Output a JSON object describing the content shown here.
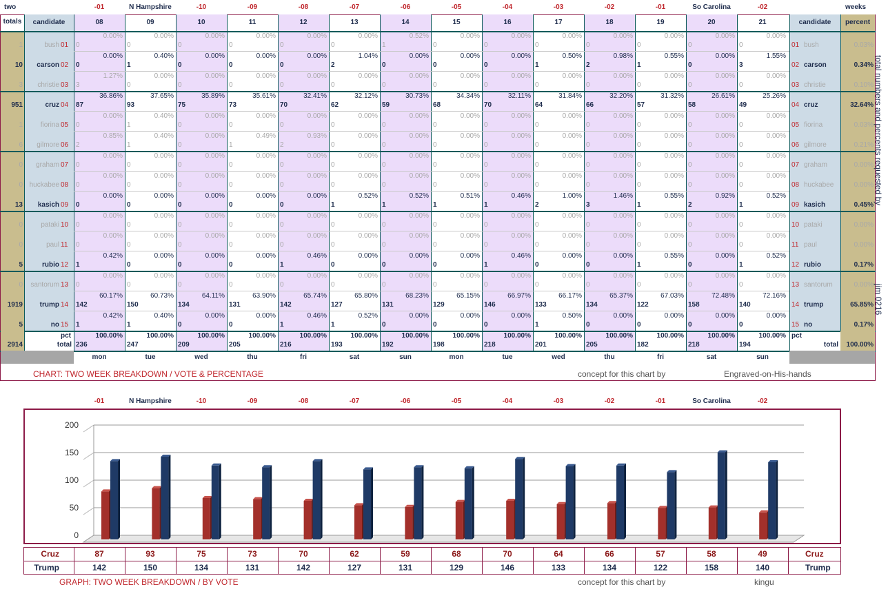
{
  "top_headers": [
    "-01",
    "N Hampshire",
    "-10",
    "-09",
    "-08",
    "-07",
    "-06",
    "-05",
    "-04",
    "-03",
    "-02",
    "-01",
    "So Carolina",
    "-02"
  ],
  "top_headers_red": [
    true,
    false,
    true,
    true,
    true,
    true,
    true,
    true,
    true,
    true,
    true,
    true,
    false,
    true
  ],
  "corner_left": "two",
  "corner_right": "weeks",
  "col_header_totals": "totals",
  "col_header_candidate": "candidate",
  "col_header_candidate_right": "candidate",
  "col_header_percent": "percent",
  "day_numbers": [
    "08",
    "09",
    "10",
    "11",
    "12",
    "13",
    "14",
    "15",
    "16",
    "17",
    "18",
    "19",
    "20",
    "21"
  ],
  "candidates": [
    {
      "name": "bush",
      "num": "01",
      "total": "1",
      "percent": "0.03%",
      "bold": false,
      "votes": [
        "0",
        "0",
        "0",
        "0",
        "0",
        "0",
        "1",
        "0",
        "0",
        "0",
        "0",
        "0",
        "0",
        "0"
      ],
      "pcts": [
        "0.00%",
        "0.00%",
        "0.00%",
        "0.00%",
        "0.00%",
        "0.00%",
        "0.52%",
        "0.00%",
        "0.00%",
        "0.00%",
        "0.00%",
        "0.00%",
        "0.00%",
        "0.00%"
      ]
    },
    {
      "name": "carson",
      "num": "02",
      "total": "10",
      "percent": "0.34%",
      "bold": true,
      "votes": [
        "0",
        "1",
        "0",
        "0",
        "0",
        "2",
        "0",
        "0",
        "0",
        "1",
        "2",
        "1",
        "0",
        "3"
      ],
      "pcts": [
        "0.00%",
        "0.40%",
        "0.00%",
        "0.00%",
        "0.00%",
        "1.04%",
        "0.00%",
        "0.00%",
        "0.00%",
        "0.50%",
        "0.98%",
        "0.55%",
        "0.00%",
        "1.55%"
      ]
    },
    {
      "name": "christie",
      "num": "03",
      "total": "3",
      "percent": "0.10%",
      "bold": false,
      "votes": [
        "3",
        "0",
        "0",
        "0",
        "0",
        "0",
        "0",
        "0",
        "0",
        "0",
        "0",
        "0",
        "0",
        "0"
      ],
      "pcts": [
        "1.27%",
        "0.00%",
        "0.00%",
        "0.00%",
        "0.00%",
        "0.00%",
        "0.00%",
        "0.00%",
        "0.00%",
        "0.00%",
        "0.00%",
        "0.00%",
        "0.00%",
        "0.00%"
      ]
    },
    {
      "name": "cruz",
      "num": "04",
      "total": "951",
      "percent": "32.64%",
      "bold": true,
      "votes": [
        "87",
        "93",
        "75",
        "73",
        "70",
        "62",
        "59",
        "68",
        "70",
        "64",
        "66",
        "57",
        "58",
        "49"
      ],
      "pcts": [
        "36.86%",
        "37.65%",
        "35.89%",
        "35.61%",
        "32.41%",
        "32.12%",
        "30.73%",
        "34.34%",
        "32.11%",
        "31.84%",
        "32.20%",
        "31.32%",
        "26.61%",
        "25.26%"
      ]
    },
    {
      "name": "fiorina",
      "num": "05",
      "total": "1",
      "percent": "0.03%",
      "bold": false,
      "votes": [
        "0",
        "1",
        "0",
        "0",
        "0",
        "0",
        "0",
        "0",
        "0",
        "0",
        "0",
        "0",
        "0",
        "0"
      ],
      "pcts": [
        "0.00%",
        "0.40%",
        "0.00%",
        "0.00%",
        "0.00%",
        "0.00%",
        "0.00%",
        "0.00%",
        "0.00%",
        "0.00%",
        "0.00%",
        "0.00%",
        "0.00%",
        "0.00%"
      ]
    },
    {
      "name": "gilmore",
      "num": "06",
      "total": "6",
      "percent": "0.21%",
      "bold": false,
      "votes": [
        "2",
        "1",
        "0",
        "1",
        "2",
        "0",
        "0",
        "0",
        "0",
        "0",
        "0",
        "0",
        "0",
        "0"
      ],
      "pcts": [
        "0.85%",
        "0.40%",
        "0.00%",
        "0.49%",
        "0.93%",
        "0.00%",
        "0.00%",
        "0.00%",
        "0.00%",
        "0.00%",
        "0.00%",
        "0.00%",
        "0.00%",
        "0.00%"
      ]
    },
    {
      "name": "graham",
      "num": "07",
      "total": "0",
      "percent": "0.00%",
      "bold": false,
      "votes": [
        "0",
        "0",
        "0",
        "0",
        "0",
        "0",
        "0",
        "0",
        "0",
        "0",
        "0",
        "0",
        "0",
        "0"
      ],
      "pcts": [
        "0.00%",
        "0.00%",
        "0.00%",
        "0.00%",
        "0.00%",
        "0.00%",
        "0.00%",
        "0.00%",
        "0.00%",
        "0.00%",
        "0.00%",
        "0.00%",
        "0.00%",
        "0.00%"
      ]
    },
    {
      "name": "huckabee",
      "num": "08",
      "total": "0",
      "percent": "0.00%",
      "bold": false,
      "votes": [
        "0",
        "0",
        "0",
        "0",
        "0",
        "0",
        "0",
        "0",
        "0",
        "0",
        "0",
        "0",
        "0",
        "0"
      ],
      "pcts": [
        "0.00%",
        "0.00%",
        "0.00%",
        "0.00%",
        "0.00%",
        "0.00%",
        "0.00%",
        "0.00%",
        "0.00%",
        "0.00%",
        "0.00%",
        "0.00%",
        "0.00%",
        "0.00%"
      ]
    },
    {
      "name": "kasich",
      "num": "09",
      "total": "13",
      "percent": "0.45%",
      "bold": true,
      "votes": [
        "0",
        "0",
        "0",
        "0",
        "0",
        "1",
        "1",
        "1",
        "1",
        "2",
        "3",
        "1",
        "2",
        "1"
      ],
      "pcts": [
        "0.00%",
        "0.00%",
        "0.00%",
        "0.00%",
        "0.00%",
        "0.52%",
        "0.52%",
        "0.51%",
        "0.46%",
        "1.00%",
        "1.46%",
        "0.55%",
        "0.92%",
        "0.52%"
      ]
    },
    {
      "name": "pataki",
      "num": "10",
      "total": "0",
      "percent": "0.00%",
      "bold": false,
      "votes": [
        "0",
        "0",
        "0",
        "0",
        "0",
        "0",
        "0",
        "0",
        "0",
        "0",
        "0",
        "0",
        "0",
        "0"
      ],
      "pcts": [
        "0.00%",
        "0.00%",
        "0.00%",
        "0.00%",
        "0.00%",
        "0.00%",
        "0.00%",
        "0.00%",
        "0.00%",
        "0.00%",
        "0.00%",
        "0.00%",
        "0.00%",
        "0.00%"
      ]
    },
    {
      "name": "paul",
      "num": "11",
      "total": "0",
      "percent": "0.00%",
      "bold": false,
      "votes": [
        "0",
        "0",
        "0",
        "0",
        "0",
        "0",
        "0",
        "0",
        "0",
        "0",
        "0",
        "0",
        "0",
        "0"
      ],
      "pcts": [
        "0.00%",
        "0.00%",
        "0.00%",
        "0.00%",
        "0.00%",
        "0.00%",
        "0.00%",
        "0.00%",
        "0.00%",
        "0.00%",
        "0.00%",
        "0.00%",
        "0.00%",
        "0.00%"
      ]
    },
    {
      "name": "rubio",
      "num": "12",
      "total": "5",
      "percent": "0.17%",
      "bold": true,
      "votes": [
        "1",
        "0",
        "0",
        "0",
        "1",
        "0",
        "0",
        "0",
        "1",
        "0",
        "0",
        "1",
        "0",
        "1"
      ],
      "pcts": [
        "0.42%",
        "0.00%",
        "0.00%",
        "0.00%",
        "0.46%",
        "0.00%",
        "0.00%",
        "0.00%",
        "0.46%",
        "0.00%",
        "0.00%",
        "0.55%",
        "0.00%",
        "0.52%"
      ]
    },
    {
      "name": "santorum",
      "num": "13",
      "total": "0",
      "percent": "0.00%",
      "bold": false,
      "votes": [
        "0",
        "0",
        "0",
        "0",
        "0",
        "0",
        "0",
        "0",
        "0",
        "0",
        "0",
        "0",
        "0",
        "0"
      ],
      "pcts": [
        "0.00%",
        "0.00%",
        "0.00%",
        "0.00%",
        "0.00%",
        "0.00%",
        "0.00%",
        "0.00%",
        "0.00%",
        "0.00%",
        "0.00%",
        "0.00%",
        "0.00%",
        "0.00%"
      ]
    },
    {
      "name": "trump",
      "num": "14",
      "total": "1919",
      "percent": "65.85%",
      "bold": true,
      "votes": [
        "142",
        "150",
        "134",
        "131",
        "142",
        "127",
        "131",
        "129",
        "146",
        "133",
        "134",
        "122",
        "158",
        "140"
      ],
      "pcts": [
        "60.17%",
        "60.73%",
        "64.11%",
        "63.90%",
        "65.74%",
        "65.80%",
        "68.23%",
        "65.15%",
        "66.97%",
        "66.17%",
        "65.37%",
        "67.03%",
        "72.48%",
        "72.16%"
      ]
    },
    {
      "name": "no",
      "num": "15",
      "total": "5",
      "percent": "0.17%",
      "bold": true,
      "votes": [
        "1",
        "1",
        "0",
        "0",
        "1",
        "1",
        "0",
        "0",
        "0",
        "1",
        "0",
        "0",
        "0",
        "0"
      ],
      "pcts": [
        "0.42%",
        "0.40%",
        "0.00%",
        "0.00%",
        "0.46%",
        "0.52%",
        "0.00%",
        "0.00%",
        "0.00%",
        "0.50%",
        "0.00%",
        "0.00%",
        "0.00%",
        "0.00%"
      ]
    }
  ],
  "totals_row": {
    "grand_total": "2914",
    "pct_label": "pct",
    "total_label": "total",
    "percent": "100.00%",
    "votes": [
      "236",
      "247",
      "209",
      "205",
      "216",
      "193",
      "192",
      "198",
      "218",
      "201",
      "205",
      "182",
      "218",
      "194"
    ],
    "pcts": [
      "100.00%",
      "100.00%",
      "100.00%",
      "100.00%",
      "100.00%",
      "100.00%",
      "100.00%",
      "100.00%",
      "100.00%",
      "100.00%",
      "100.00%",
      "100.00%",
      "100.00%",
      "100.00%"
    ]
  },
  "days": [
    "mon",
    "tue",
    "wed",
    "thu",
    "fri",
    "sat",
    "sun",
    "mon",
    "tue",
    "wed",
    "thu",
    "fri",
    "sat",
    "sun"
  ],
  "vertical_note": "total numbers and percents requested by",
  "vertical_note2": "jim 0216",
  "table_caption": "CHART: TWO WEEK BREAKDOWN / VOTE & PERCENTAGE",
  "concept_label": "concept for this chart by",
  "table_credit": "Engraved-on-His-hands",
  "graph_caption": "GRAPH: TWO WEEK BREAKDOWN / BY VOTE",
  "graph_credit": "kingu",
  "colors": {
    "cruz": "#a3302b",
    "trump": "#1f3a66",
    "purple_col": "#ecdcfa",
    "blue_col": "#cddbe6",
    "tan_col": "#c9bd8e",
    "grid": "#0c5a5a",
    "border": "#8c1a47"
  },
  "chart_data": {
    "type": "bar",
    "categories": [
      "-01",
      "N Hampshire",
      "-10",
      "-09",
      "-08",
      "-07",
      "-06",
      "-05",
      "-04",
      "-03",
      "-02",
      "-01",
      "So Carolina",
      "-02"
    ],
    "series": [
      {
        "name": "Cruz",
        "values": [
          87,
          93,
          75,
          73,
          70,
          62,
          59,
          68,
          70,
          64,
          66,
          57,
          58,
          49
        ],
        "color": "#a3302b"
      },
      {
        "name": "Trump",
        "values": [
          142,
          150,
          134,
          131,
          142,
          127,
          131,
          129,
          146,
          133,
          134,
          122,
          158,
          140
        ],
        "color": "#1f3a66"
      }
    ],
    "ylim": [
      0,
      200
    ],
    "yticks": [
      "0",
      "50",
      "100",
      "150",
      "200"
    ],
    "grid": true,
    "title": "",
    "xlabel": "",
    "ylabel": ""
  }
}
